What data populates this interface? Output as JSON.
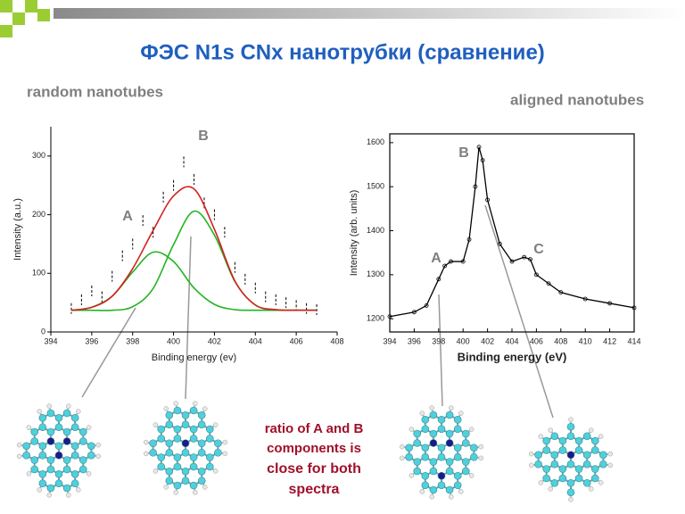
{
  "title": "ФЭС N1s CNx нанотрубки (сравнение)",
  "left_caption": "random nanotubes",
  "right_caption": "aligned nanotubes",
  "note_lines": [
    "ratio of A and B",
    "components is",
    "close for both",
    "spectra"
  ],
  "chart_data": [
    {
      "type": "line",
      "frame": "axes",
      "smooth": true,
      "xlabel": "Binding energy (ev)",
      "ylabel": "Intensity (a.u.)",
      "annotations": [
        "B",
        "A"
      ],
      "x": [
        395,
        396,
        397,
        398,
        399,
        400,
        401,
        402,
        403,
        404,
        405,
        406,
        407
      ],
      "series": [
        {
          "color": "#000000",
          "mode": "markers",
          "x": [
            395,
            395.5,
            396,
            396.5,
            397,
            397.5,
            398,
            398.5,
            399,
            399.5,
            400,
            400.5,
            401,
            401.5,
            402,
            402.5,
            403,
            403.5,
            404,
            404.5,
            405,
            405.5,
            406,
            406.5,
            407
          ],
          "values": [
            40,
            55,
            70,
            60,
            95,
            130,
            150,
            190,
            170,
            230,
            250,
            290,
            260,
            220,
            200,
            170,
            110,
            90,
            75,
            60,
            55,
            50,
            45,
            40,
            38
          ]
        },
        {
          "color": "#22b522",
          "mode": "lines",
          "values": [
            37,
            42,
            61,
            102,
            136,
            120,
            75,
            47,
            38,
            37,
            37,
            37,
            37
          ]
        },
        {
          "color": "#22b522",
          "mode": "lines",
          "values": [
            37,
            37,
            37,
            43,
            74,
            149,
            206,
            165,
            86,
            46,
            38,
            37,
            37
          ]
        },
        {
          "color": "#d42020",
          "mode": "lines",
          "values": [
            37,
            42,
            61,
            108,
            173,
            232,
            244,
            175,
            87,
            46,
            38,
            37,
            37
          ]
        }
      ],
      "xlim": [
        394,
        408
      ],
      "xticks": [
        394,
        396,
        398,
        400,
        402,
        404,
        406,
        408
      ],
      "ylim": [
        0,
        350
      ],
      "yticks": [
        0,
        100,
        200,
        300
      ]
    },
    {
      "type": "line",
      "frame": "box",
      "smooth": false,
      "xlabel": "Binding energy (eV)",
      "ylabel": "Intensity (arb. units)",
      "annotations": [
        "B",
        "A",
        "C"
      ],
      "x": [
        394,
        396,
        397,
        398,
        398.5,
        399,
        400,
        400.5,
        401,
        401.3,
        401.6,
        402,
        403,
        404,
        405,
        405.5,
        406,
        407,
        408,
        410,
        412,
        414
      ],
      "series": [
        {
          "color": "#000000",
          "mode": "lines+markers",
          "values": [
            1205,
            1215,
            1230,
            1290,
            1320,
            1330,
            1330,
            1380,
            1500,
            1590,
            1560,
            1470,
            1370,
            1330,
            1340,
            1335,
            1300,
            1280,
            1260,
            1245,
            1235,
            1225
          ]
        }
      ],
      "xlim": [
        394,
        414
      ],
      "xticks": [
        394,
        396,
        398,
        400,
        402,
        404,
        406,
        408,
        410,
        412,
        414
      ],
      "ylim": [
        1170,
        1620
      ],
      "yticks": [
        1200,
        1300,
        1400,
        1500,
        1600
      ]
    }
  ]
}
